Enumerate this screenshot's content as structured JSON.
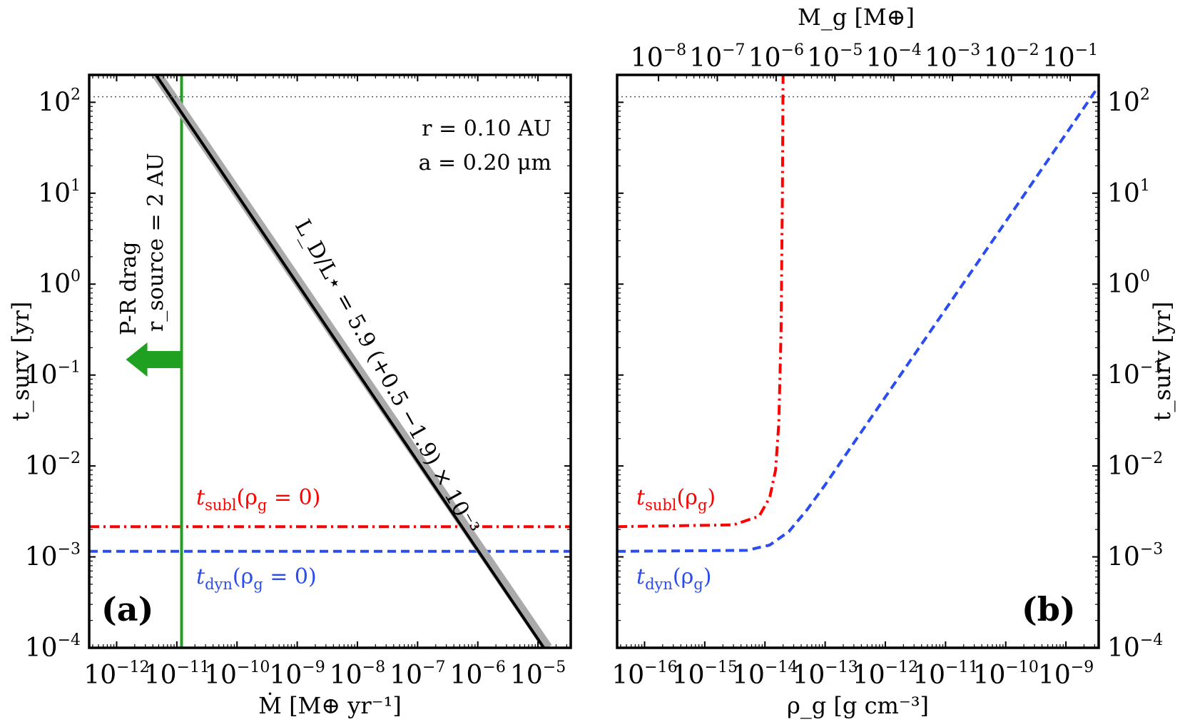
{
  "chart_data": [
    {
      "type": "line",
      "panel_label": "(a)",
      "xlabel": "Ṁ [M⊕ yr⁻¹]",
      "ylabel": "t_surv [yr]",
      "xscale": "log",
      "yscale": "log",
      "xlim": [
        3.5e-13,
        3.5e-05
      ],
      "ylim": [
        0.0001,
        200
      ],
      "x_tick_labels": [
        "10^-12",
        "10^-11",
        "10^-10",
        "10^-9",
        "10^-8",
        "10^-7",
        "10^-6",
        "10^-5"
      ],
      "y_tick_labels": [
        "10^-4",
        "10^-3",
        "10^-2",
        "10^-1",
        "10^0",
        "10^1",
        "10^2"
      ],
      "annotations": {
        "r": "r = 0.10 AU",
        "a": "a = 0.20 μm",
        "pr_drag": "P-R drag",
        "r_source": "r_source = 2 AU",
        "luminosity": "L_D/L⋆ = 5.9 (+0.5 −1.9) × 10⁻³"
      },
      "series": [
        {
          "name": "t_subl(ρ_g = 0)",
          "label_main": "t",
          "label_sub": "subl",
          "label_rest": "(ρ",
          "label_sub2": "g",
          "label_tail": " = 0)",
          "style": "dash-dot",
          "color": "#ff0000",
          "x": [
            3.5e-13,
            3.5e-05
          ],
          "y": [
            0.00215,
            0.00215
          ]
        },
        {
          "name": "t_dyn(ρ_g = 0)",
          "label_main": "t",
          "label_sub": "dyn",
          "label_rest": "(ρ",
          "label_sub2": "g",
          "label_tail": " = 0)",
          "style": "dashed",
          "color": "#2a4cf0",
          "x": [
            3.5e-13,
            3.5e-05
          ],
          "y": [
            0.00115,
            0.00115
          ]
        },
        {
          "name": "P-R drag limit",
          "style": "solid",
          "color": "#20a020",
          "x": [
            1.2e-11,
            1.2e-11
          ],
          "y": [
            0.0001,
            200
          ]
        },
        {
          "name": "L_D/L⋆ band",
          "style": "solid",
          "color": "#aaaaaa",
          "x": [
            4.7e-12,
            1.45e-05
          ],
          "y": [
            200,
            0.0001
          ]
        },
        {
          "name": "L_D/L⋆ = 5.9e-3",
          "style": "solid",
          "color": "#000000",
          "x": [
            4.5e-12,
            1.25e-05
          ],
          "y": [
            200,
            0.0001
          ]
        },
        {
          "name": "horizontal reference",
          "style": "dotted",
          "color": "#555555",
          "x": [
            3.5e-13,
            3.5e-05
          ],
          "y": [
            115,
            115
          ]
        }
      ]
    },
    {
      "type": "line",
      "panel_label": "(b)",
      "xlabel": "ρ_g [g cm⁻³]",
      "ylabel": "t_surv [yr]",
      "top_xlabel": "M_g [M⊕]",
      "xscale": "log",
      "yscale": "log",
      "xlim": [
        3.5e-17,
        3.5e-09
      ],
      "ylim": [
        0.0001,
        200
      ],
      "x_tick_labels": [
        "10^-16",
        "10^-15",
        "10^-14",
        "10^-13",
        "10^-12",
        "10^-11",
        "10^-10",
        "10^-9"
      ],
      "top_tick_labels": [
        "10^-8",
        "10^-7",
        "10^-6",
        "10^-5",
        "10^-4",
        "10^-3",
        "10^-2",
        "10^-1"
      ],
      "y_tick_labels": [
        "10^-4",
        "10^-3",
        "10^-2",
        "10^-1",
        "10^0",
        "10^1",
        "10^2"
      ],
      "series": [
        {
          "name": "t_subl(ρ_g)",
          "label_main": "t",
          "label_sub": "subl",
          "label_rest": "(ρ",
          "label_sub2": "g",
          "label_tail": ")",
          "style": "dash-dot",
          "color": "#ff0000",
          "x": [
            3.5e-17,
            3e-15,
            8e-15,
            1.2e-14,
            1.5e-14,
            1.7e-14,
            1.85e-14,
            1.95e-14,
            2e-14
          ],
          "y": [
            0.00215,
            0.00225,
            0.0028,
            0.0045,
            0.009,
            0.03,
            0.3,
            10,
            200
          ]
        },
        {
          "name": "t_dyn(ρ_g)",
          "label_main": "t",
          "label_sub": "dyn",
          "label_rest": "(ρ",
          "label_sub2": "g",
          "label_tail": ")",
          "style": "dashed",
          "color": "#2a4cf0",
          "x": [
            3.5e-17,
            5e-15,
            1.2e-14,
            2.5e-14,
            5e-14,
            1e-13,
            3e-13,
            3.5e-09
          ],
          "y": [
            0.00115,
            0.00118,
            0.00135,
            0.0019,
            0.0033,
            0.0062,
            0.018,
            150
          ]
        },
        {
          "name": "horizontal reference",
          "style": "dotted",
          "color": "#555555",
          "x": [
            3.5e-17,
            3.5e-09
          ],
          "y": [
            115,
            115
          ]
        }
      ]
    }
  ]
}
